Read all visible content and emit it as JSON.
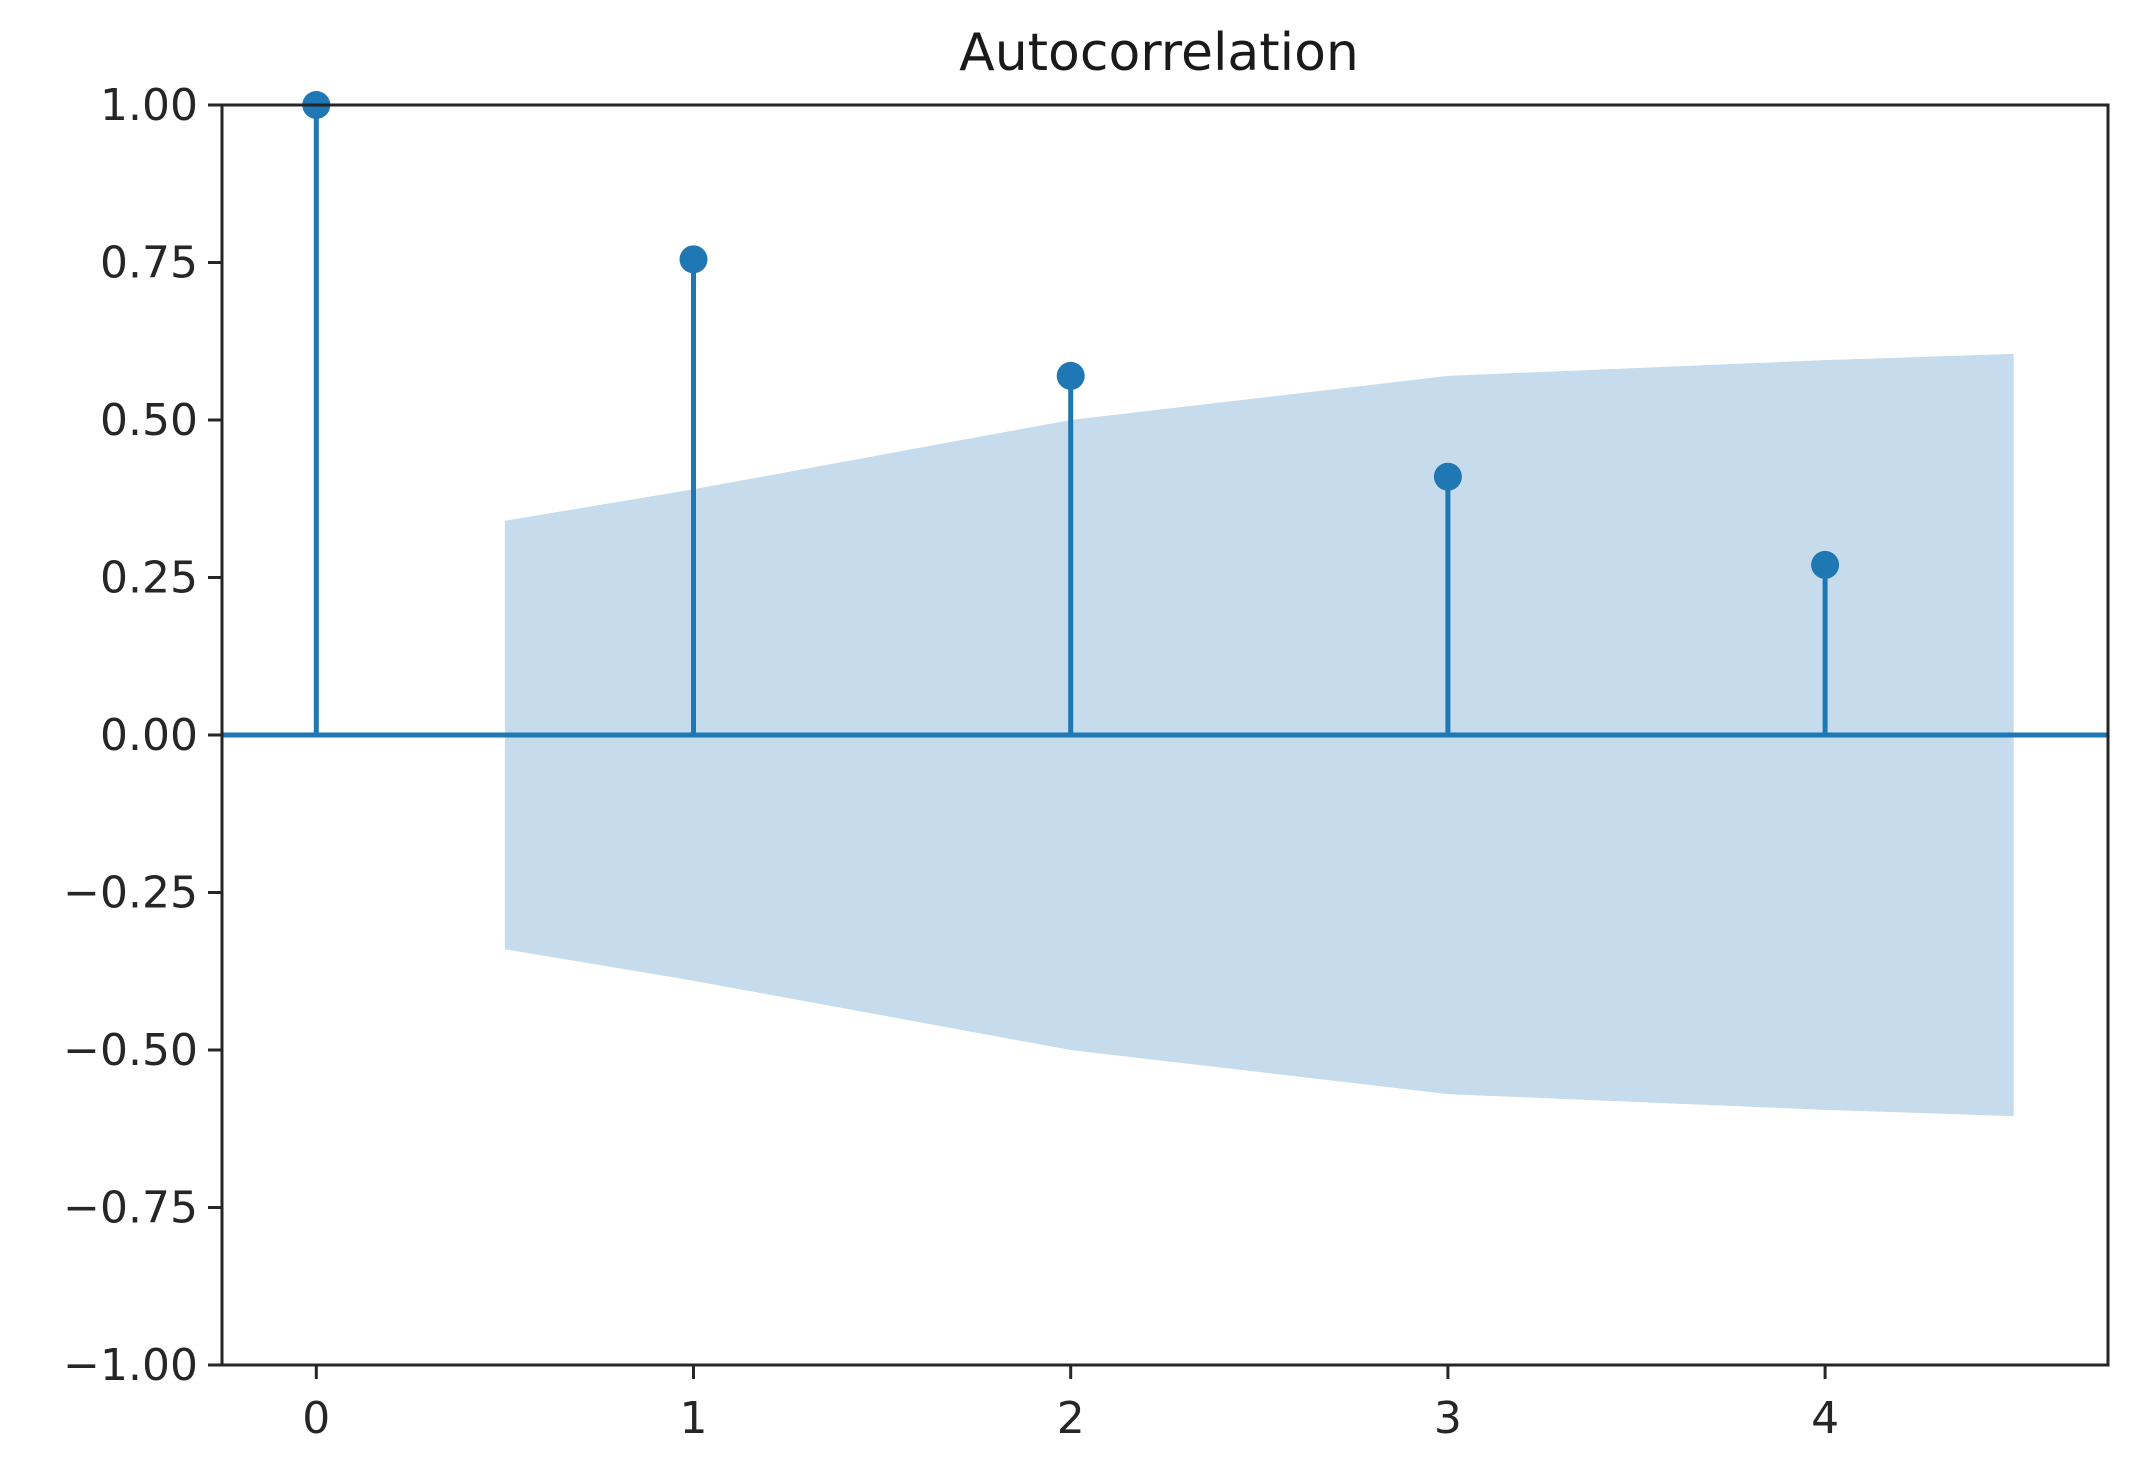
{
  "chart_data": {
    "type": "stem",
    "title": "Autocorrelation",
    "xlabel": "",
    "ylabel": "",
    "x": [
      0,
      1,
      2,
      3,
      4
    ],
    "values": [
      1.0,
      0.755,
      0.57,
      0.41,
      0.27
    ],
    "confidence_band": {
      "x": [
        0.5,
        1,
        2,
        3,
        4,
        4.5
      ],
      "upper": [
        0.34,
        0.39,
        0.5,
        0.57,
        0.595,
        0.605
      ],
      "lower": [
        -0.34,
        -0.39,
        -0.5,
        -0.57,
        -0.595,
        -0.605
      ]
    },
    "xlim": [
      -0.25,
      4.75
    ],
    "ylim": [
      -1.0,
      1.0
    ],
    "xticks": [
      "0",
      "1",
      "2",
      "3",
      "4"
    ],
    "yticks": [
      "−1.00",
      "−0.75",
      "−0.50",
      "−0.25",
      "0.00",
      "0.25",
      "0.50",
      "0.75",
      "1.00"
    ],
    "ytick_values": [
      -1.0,
      -0.75,
      -0.5,
      -0.25,
      0.0,
      0.25,
      0.5,
      0.75,
      1.0
    ],
    "grid": false,
    "colors": {
      "stem": "#1f77b4",
      "band": "#c6dbeb",
      "axis": "#262626"
    }
  }
}
